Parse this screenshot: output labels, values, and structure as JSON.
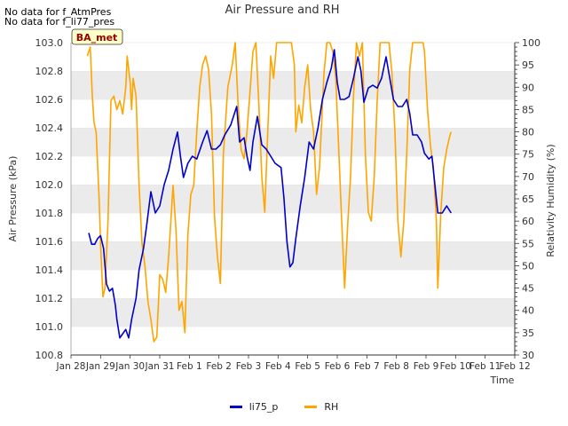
{
  "notes": [
    "No data for f_AtmPres",
    "No data for f_li77_pres"
  ],
  "colors": {
    "pressure": "#0000cc",
    "rh": "#ffa500",
    "band": "#ebebeb",
    "grid": "#dddddd"
  },
  "chart_data": {
    "type": "line",
    "title": "Air Pressure and RH",
    "xlabel": "Time",
    "ylabel_left": "Air Pressure (kPa)",
    "ylabel_right": "Relativity Humidity (%)",
    "station_badge": "BA_met",
    "x_ticks": [
      "Jan 28",
      "Jan 29",
      "Jan 30",
      "Jan 31",
      "Feb 1",
      "Feb 2",
      "Feb 3",
      "Feb 4",
      "Feb 5",
      "Feb 6",
      "Feb 7",
      "Feb 8",
      "Feb 9",
      "Feb 10",
      "Feb 11",
      "Feb 12"
    ],
    "x_range_days": [
      0,
      15
    ],
    "y_left_range": [
      100.8,
      103.0
    ],
    "y_left_ticks": [
      "100.8",
      "101.0",
      "101.2",
      "101.4",
      "101.6",
      "101.8",
      "102.0",
      "102.2",
      "102.4",
      "102.6",
      "102.8",
      "103.0"
    ],
    "y_right_range": [
      30,
      100
    ],
    "y_right_ticks": [
      "30",
      "35",
      "40",
      "45",
      "50",
      "55",
      "60",
      "65",
      "70",
      "75",
      "80",
      "85",
      "90",
      "95",
      "100"
    ],
    "grid": "horizontal bands",
    "legend_position": "bottom",
    "series": [
      {
        "name": "li75_p",
        "axis": "left",
        "points": [
          [
            0.6,
            101.66
          ],
          [
            0.7,
            101.58
          ],
          [
            0.8,
            101.58
          ],
          [
            0.9,
            101.62
          ],
          [
            1.0,
            101.64
          ],
          [
            1.1,
            101.55
          ],
          [
            1.2,
            101.3
          ],
          [
            1.3,
            101.25
          ],
          [
            1.4,
            101.27
          ],
          [
            1.5,
            101.15
          ],
          [
            1.55,
            101.05
          ],
          [
            1.65,
            100.92
          ],
          [
            1.75,
            100.95
          ],
          [
            1.85,
            100.98
          ],
          [
            1.95,
            100.92
          ],
          [
            2.05,
            101.05
          ],
          [
            2.2,
            101.2
          ],
          [
            2.3,
            101.4
          ],
          [
            2.45,
            101.55
          ],
          [
            2.55,
            101.7
          ],
          [
            2.7,
            101.95
          ],
          [
            2.85,
            101.8
          ],
          [
            3.0,
            101.85
          ],
          [
            3.15,
            102.0
          ],
          [
            3.3,
            102.1
          ],
          [
            3.45,
            102.25
          ],
          [
            3.6,
            102.37
          ],
          [
            3.7,
            102.2
          ],
          [
            3.8,
            102.05
          ],
          [
            3.95,
            102.15
          ],
          [
            4.1,
            102.2
          ],
          [
            4.25,
            102.18
          ],
          [
            4.45,
            102.3
          ],
          [
            4.6,
            102.38
          ],
          [
            4.75,
            102.25
          ],
          [
            4.9,
            102.25
          ],
          [
            5.05,
            102.28
          ],
          [
            5.2,
            102.35
          ],
          [
            5.4,
            102.42
          ],
          [
            5.6,
            102.55
          ],
          [
            5.7,
            102.3
          ],
          [
            5.85,
            102.33
          ],
          [
            5.95,
            102.2
          ],
          [
            6.05,
            102.1
          ],
          [
            6.15,
            102.3
          ],
          [
            6.3,
            102.48
          ],
          [
            6.45,
            102.28
          ],
          [
            6.6,
            102.25
          ],
          [
            6.75,
            102.2
          ],
          [
            6.9,
            102.15
          ],
          [
            7.1,
            102.12
          ],
          [
            7.2,
            101.9
          ],
          [
            7.3,
            101.6
          ],
          [
            7.4,
            101.42
          ],
          [
            7.5,
            101.45
          ],
          [
            7.6,
            101.62
          ],
          [
            7.75,
            101.85
          ],
          [
            7.9,
            102.05
          ],
          [
            8.05,
            102.3
          ],
          [
            8.2,
            102.25
          ],
          [
            8.35,
            102.4
          ],
          [
            8.5,
            102.6
          ],
          [
            8.65,
            102.72
          ],
          [
            8.8,
            102.82
          ],
          [
            8.9,
            102.95
          ],
          [
            9.0,
            102.72
          ],
          [
            9.1,
            102.6
          ],
          [
            9.25,
            102.6
          ],
          [
            9.4,
            102.62
          ],
          [
            9.55,
            102.75
          ],
          [
            9.7,
            102.9
          ],
          [
            9.8,
            102.8
          ],
          [
            9.9,
            102.58
          ],
          [
            10.05,
            102.68
          ],
          [
            10.2,
            102.7
          ],
          [
            10.35,
            102.68
          ],
          [
            10.5,
            102.75
          ],
          [
            10.65,
            102.9
          ],
          [
            10.8,
            102.72
          ],
          [
            10.9,
            102.6
          ],
          [
            11.05,
            102.55
          ],
          [
            11.2,
            102.55
          ],
          [
            11.35,
            102.6
          ],
          [
            11.45,
            102.5
          ],
          [
            11.55,
            102.35
          ],
          [
            11.7,
            102.35
          ],
          [
            11.85,
            102.3
          ],
          [
            11.95,
            102.22
          ],
          [
            12.1,
            102.18
          ],
          [
            12.2,
            102.2
          ],
          [
            12.3,
            102.0
          ],
          [
            12.4,
            101.8
          ],
          [
            12.55,
            101.8
          ],
          [
            12.7,
            101.85
          ],
          [
            12.85,
            101.8
          ]
        ]
      },
      {
        "name": "RH",
        "axis": "right",
        "points": [
          [
            0.55,
            97
          ],
          [
            0.65,
            99
          ],
          [
            0.72,
            88
          ],
          [
            0.78,
            82
          ],
          [
            0.85,
            80
          ],
          [
            0.95,
            65
          ],
          [
            1.0,
            55
          ],
          [
            1.08,
            43
          ],
          [
            1.15,
            45
          ],
          [
            1.25,
            60
          ],
          [
            1.35,
            87
          ],
          [
            1.45,
            88
          ],
          [
            1.55,
            85
          ],
          [
            1.65,
            87
          ],
          [
            1.75,
            84
          ],
          [
            1.85,
            90
          ],
          [
            1.9,
            97
          ],
          [
            2.0,
            91
          ],
          [
            2.05,
            85
          ],
          [
            2.1,
            92
          ],
          [
            2.2,
            88
          ],
          [
            2.3,
            68
          ],
          [
            2.4,
            55
          ],
          [
            2.5,
            50
          ],
          [
            2.6,
            42
          ],
          [
            2.7,
            38
          ],
          [
            2.8,
            33
          ],
          [
            2.9,
            34
          ],
          [
            3.0,
            48
          ],
          [
            3.1,
            47
          ],
          [
            3.2,
            44
          ],
          [
            3.3,
            52
          ],
          [
            3.45,
            68
          ],
          [
            3.55,
            58
          ],
          [
            3.65,
            40
          ],
          [
            3.75,
            42
          ],
          [
            3.85,
            35
          ],
          [
            3.95,
            57
          ],
          [
            4.05,
            66
          ],
          [
            4.15,
            68
          ],
          [
            4.25,
            80
          ],
          [
            4.35,
            90
          ],
          [
            4.45,
            95
          ],
          [
            4.55,
            97
          ],
          [
            4.65,
            94
          ],
          [
            4.75,
            84
          ],
          [
            4.85,
            61
          ],
          [
            4.95,
            52
          ],
          [
            5.05,
            46
          ],
          [
            5.15,
            75
          ],
          [
            5.3,
            90
          ],
          [
            5.45,
            95
          ],
          [
            5.55,
            100
          ],
          [
            5.65,
            86
          ],
          [
            5.75,
            76
          ],
          [
            5.85,
            74
          ],
          [
            5.95,
            80
          ],
          [
            6.05,
            89
          ],
          [
            6.15,
            98
          ],
          [
            6.25,
            100
          ],
          [
            6.35,
            86
          ],
          [
            6.45,
            70
          ],
          [
            6.55,
            62
          ],
          [
            6.65,
            80
          ],
          [
            6.75,
            97
          ],
          [
            6.85,
            92
          ],
          [
            6.95,
            100
          ],
          [
            7.1,
            100
          ],
          [
            7.3,
            100
          ],
          [
            7.45,
            100
          ],
          [
            7.55,
            95
          ],
          [
            7.6,
            80
          ],
          [
            7.7,
            86
          ],
          [
            7.8,
            82
          ],
          [
            7.9,
            90
          ],
          [
            8.0,
            95
          ],
          [
            8.1,
            85
          ],
          [
            8.2,
            80
          ],
          [
            8.3,
            66
          ],
          [
            8.4,
            72
          ],
          [
            8.55,
            93
          ],
          [
            8.65,
            100
          ],
          [
            8.75,
            100
          ],
          [
            8.85,
            98
          ],
          [
            8.95,
            92
          ],
          [
            9.05,
            76
          ],
          [
            9.15,
            60
          ],
          [
            9.25,
            45
          ],
          [
            9.35,
            59
          ],
          [
            9.45,
            70
          ],
          [
            9.55,
            88
          ],
          [
            9.65,
            100
          ],
          [
            9.75,
            97
          ],
          [
            9.85,
            100
          ],
          [
            9.95,
            75
          ],
          [
            10.05,
            62
          ],
          [
            10.15,
            60
          ],
          [
            10.25,
            70
          ],
          [
            10.35,
            87
          ],
          [
            10.45,
            100
          ],
          [
            10.6,
            100
          ],
          [
            10.75,
            100
          ],
          [
            10.85,
            93
          ],
          [
            10.95,
            80
          ],
          [
            11.05,
            60
          ],
          [
            11.15,
            52
          ],
          [
            11.25,
            60
          ],
          [
            11.35,
            75
          ],
          [
            11.45,
            94
          ],
          [
            11.55,
            100
          ],
          [
            11.7,
            100
          ],
          [
            11.8,
            100
          ],
          [
            11.9,
            100
          ],
          [
            11.95,
            98
          ],
          [
            12.05,
            85
          ],
          [
            12.15,
            77
          ],
          [
            12.25,
            72
          ],
          [
            12.35,
            60
          ],
          [
            12.4,
            45
          ],
          [
            12.5,
            62
          ],
          [
            12.6,
            72
          ],
          [
            12.7,
            76
          ],
          [
            12.8,
            79
          ],
          [
            12.85,
            80
          ]
        ]
      }
    ]
  }
}
